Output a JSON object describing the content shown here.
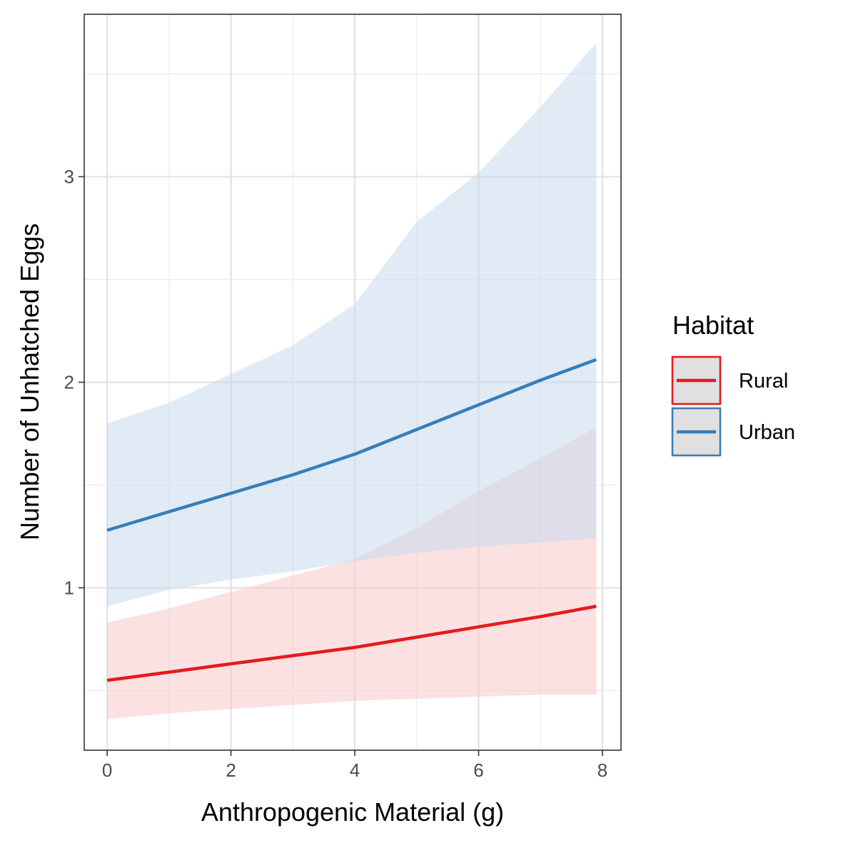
{
  "chart_data": {
    "type": "line",
    "title": "",
    "xlabel": "Anthropogenic Material (g)",
    "ylabel": "Number of Unhatched Eggs",
    "xlim": [
      -0.37,
      8.3
    ],
    "ylim": [
      0.21,
      3.79
    ],
    "x_ticks": [
      0,
      2,
      4,
      6,
      8
    ],
    "x_minor_ticks": [
      1,
      3,
      5,
      7
    ],
    "x_tick_labels": [
      "0",
      "2",
      "4",
      "6",
      "8"
    ],
    "y_ticks": [
      1,
      2,
      3
    ],
    "y_minor_ticks": [
      0.5,
      1.5,
      2.5,
      3.5
    ],
    "y_tick_labels": [
      "1",
      "2",
      "3"
    ],
    "grid": true,
    "legend": {
      "title": "Habitat",
      "position": "right"
    },
    "series": [
      {
        "name": "Rural",
        "color": "#e41a1c",
        "ribbon_color": "#f8c9cb",
        "x": [
          0,
          1,
          2,
          3,
          4,
          5,
          6,
          7,
          7.9
        ],
        "y": [
          0.55,
          0.59,
          0.63,
          0.67,
          0.71,
          0.76,
          0.81,
          0.86,
          0.91
        ],
        "lower": [
          0.36,
          0.39,
          0.41,
          0.43,
          0.45,
          0.46,
          0.47,
          0.48,
          0.48
        ],
        "upper": [
          0.83,
          0.9,
          0.98,
          1.06,
          1.14,
          1.29,
          1.47,
          1.63,
          1.78
        ]
      },
      {
        "name": "Urban",
        "color": "#377eb8",
        "ribbon_color": "#c6dbef",
        "x": [
          0,
          1,
          2,
          3,
          4,
          5,
          6,
          7,
          7.9
        ],
        "y": [
          1.28,
          1.37,
          1.46,
          1.55,
          1.65,
          1.77,
          1.89,
          2.01,
          2.11
        ],
        "lower": [
          0.91,
          0.99,
          1.04,
          1.08,
          1.13,
          1.17,
          1.2,
          1.22,
          1.24
        ],
        "upper": [
          1.8,
          1.9,
          2.04,
          2.18,
          2.38,
          2.78,
          3.02,
          3.34,
          3.65
        ]
      }
    ]
  }
}
